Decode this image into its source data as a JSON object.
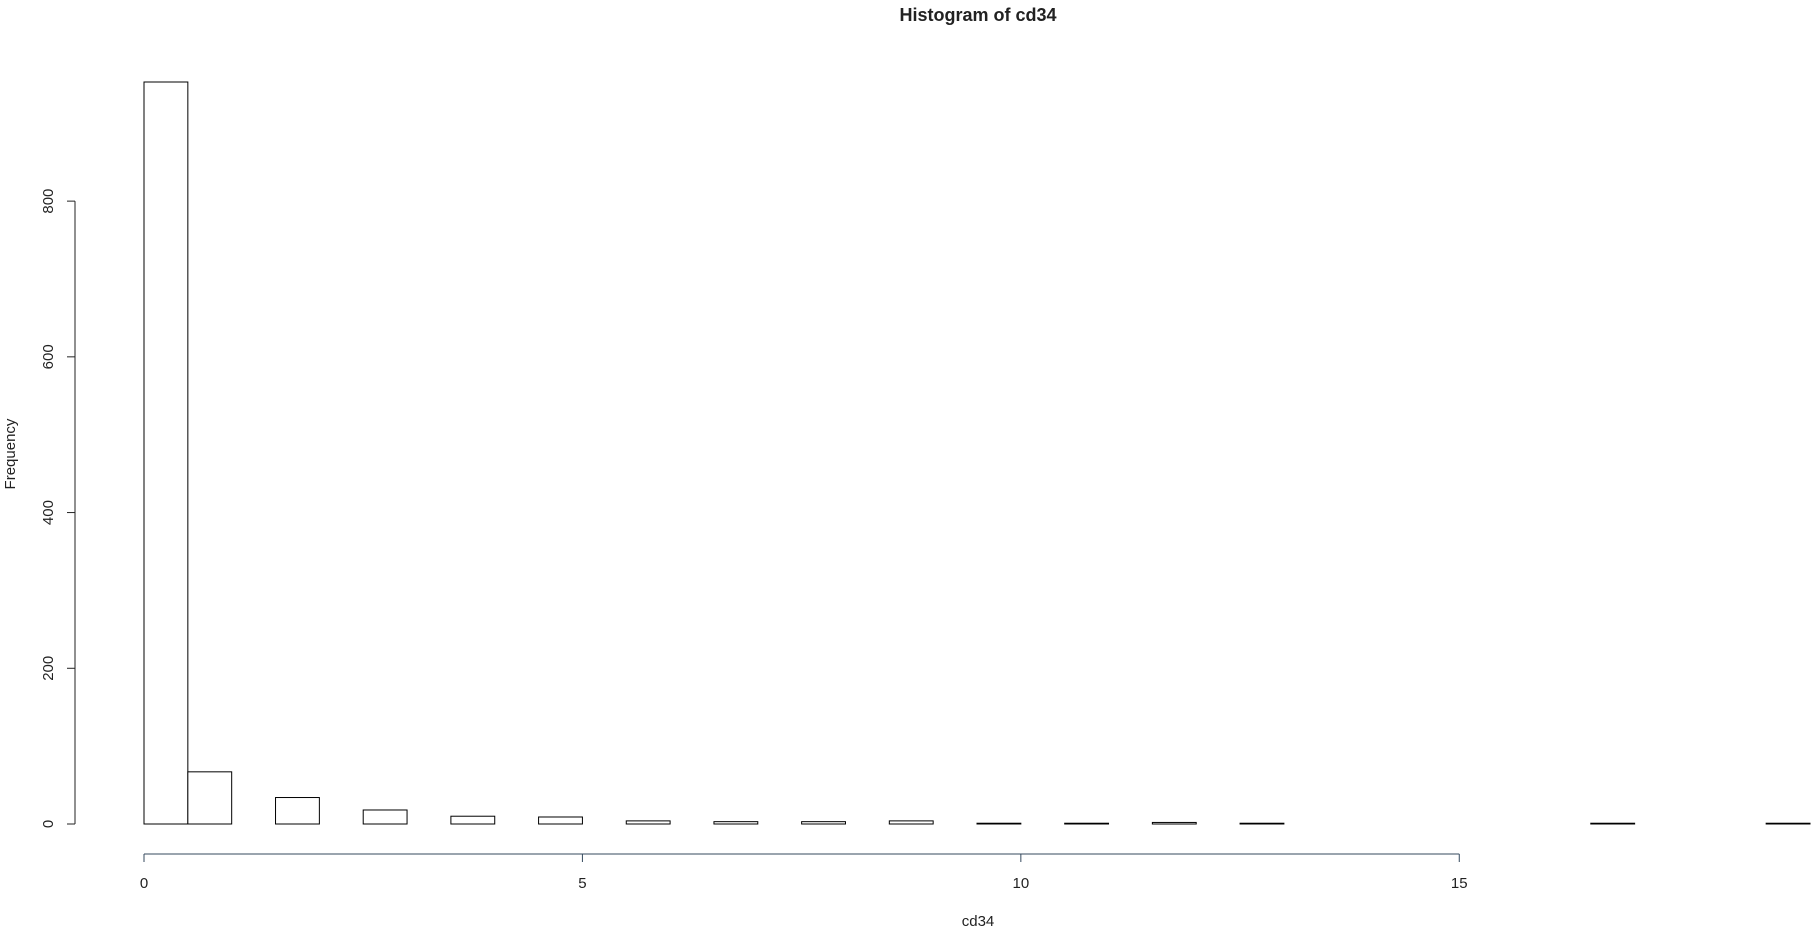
{
  "chart_data": {
    "type": "histogram",
    "title": "Histogram of cd34",
    "x_label": "cd34",
    "y_label": "Frequency",
    "bins": [
      0,
      0.5,
      1,
      1.5,
      2,
      2.5,
      3,
      3.5,
      4,
      4.5,
      5,
      5.5,
      6,
      6.5,
      7,
      7.5,
      8,
      8.5,
      9,
      9.5,
      10,
      10.5,
      11,
      11.5,
      12,
      12.5,
      13,
      13.5,
      14,
      14.5,
      15,
      15.5,
      16,
      16.5,
      17,
      17.5,
      18,
      18.5,
      19
    ],
    "values": [
      953,
      67,
      0,
      34,
      0,
      18,
      0,
      10,
      0,
      9,
      0,
      4,
      0,
      3,
      0,
      3,
      0,
      4,
      0,
      1,
      0,
      1,
      0,
      2,
      0,
      1,
      0,
      0,
      0,
      0,
      0,
      0,
      0,
      1,
      0,
      0,
      0,
      1
    ],
    "color": "#ffffff",
    "edge_color": "#000000",
    "xlim": [
      0,
      19
    ],
    "ylim": [
      0,
      953
    ],
    "xticks": [
      0,
      5,
      10,
      15
    ],
    "yticks": [
      0,
      200,
      400,
      600,
      800
    ]
  }
}
